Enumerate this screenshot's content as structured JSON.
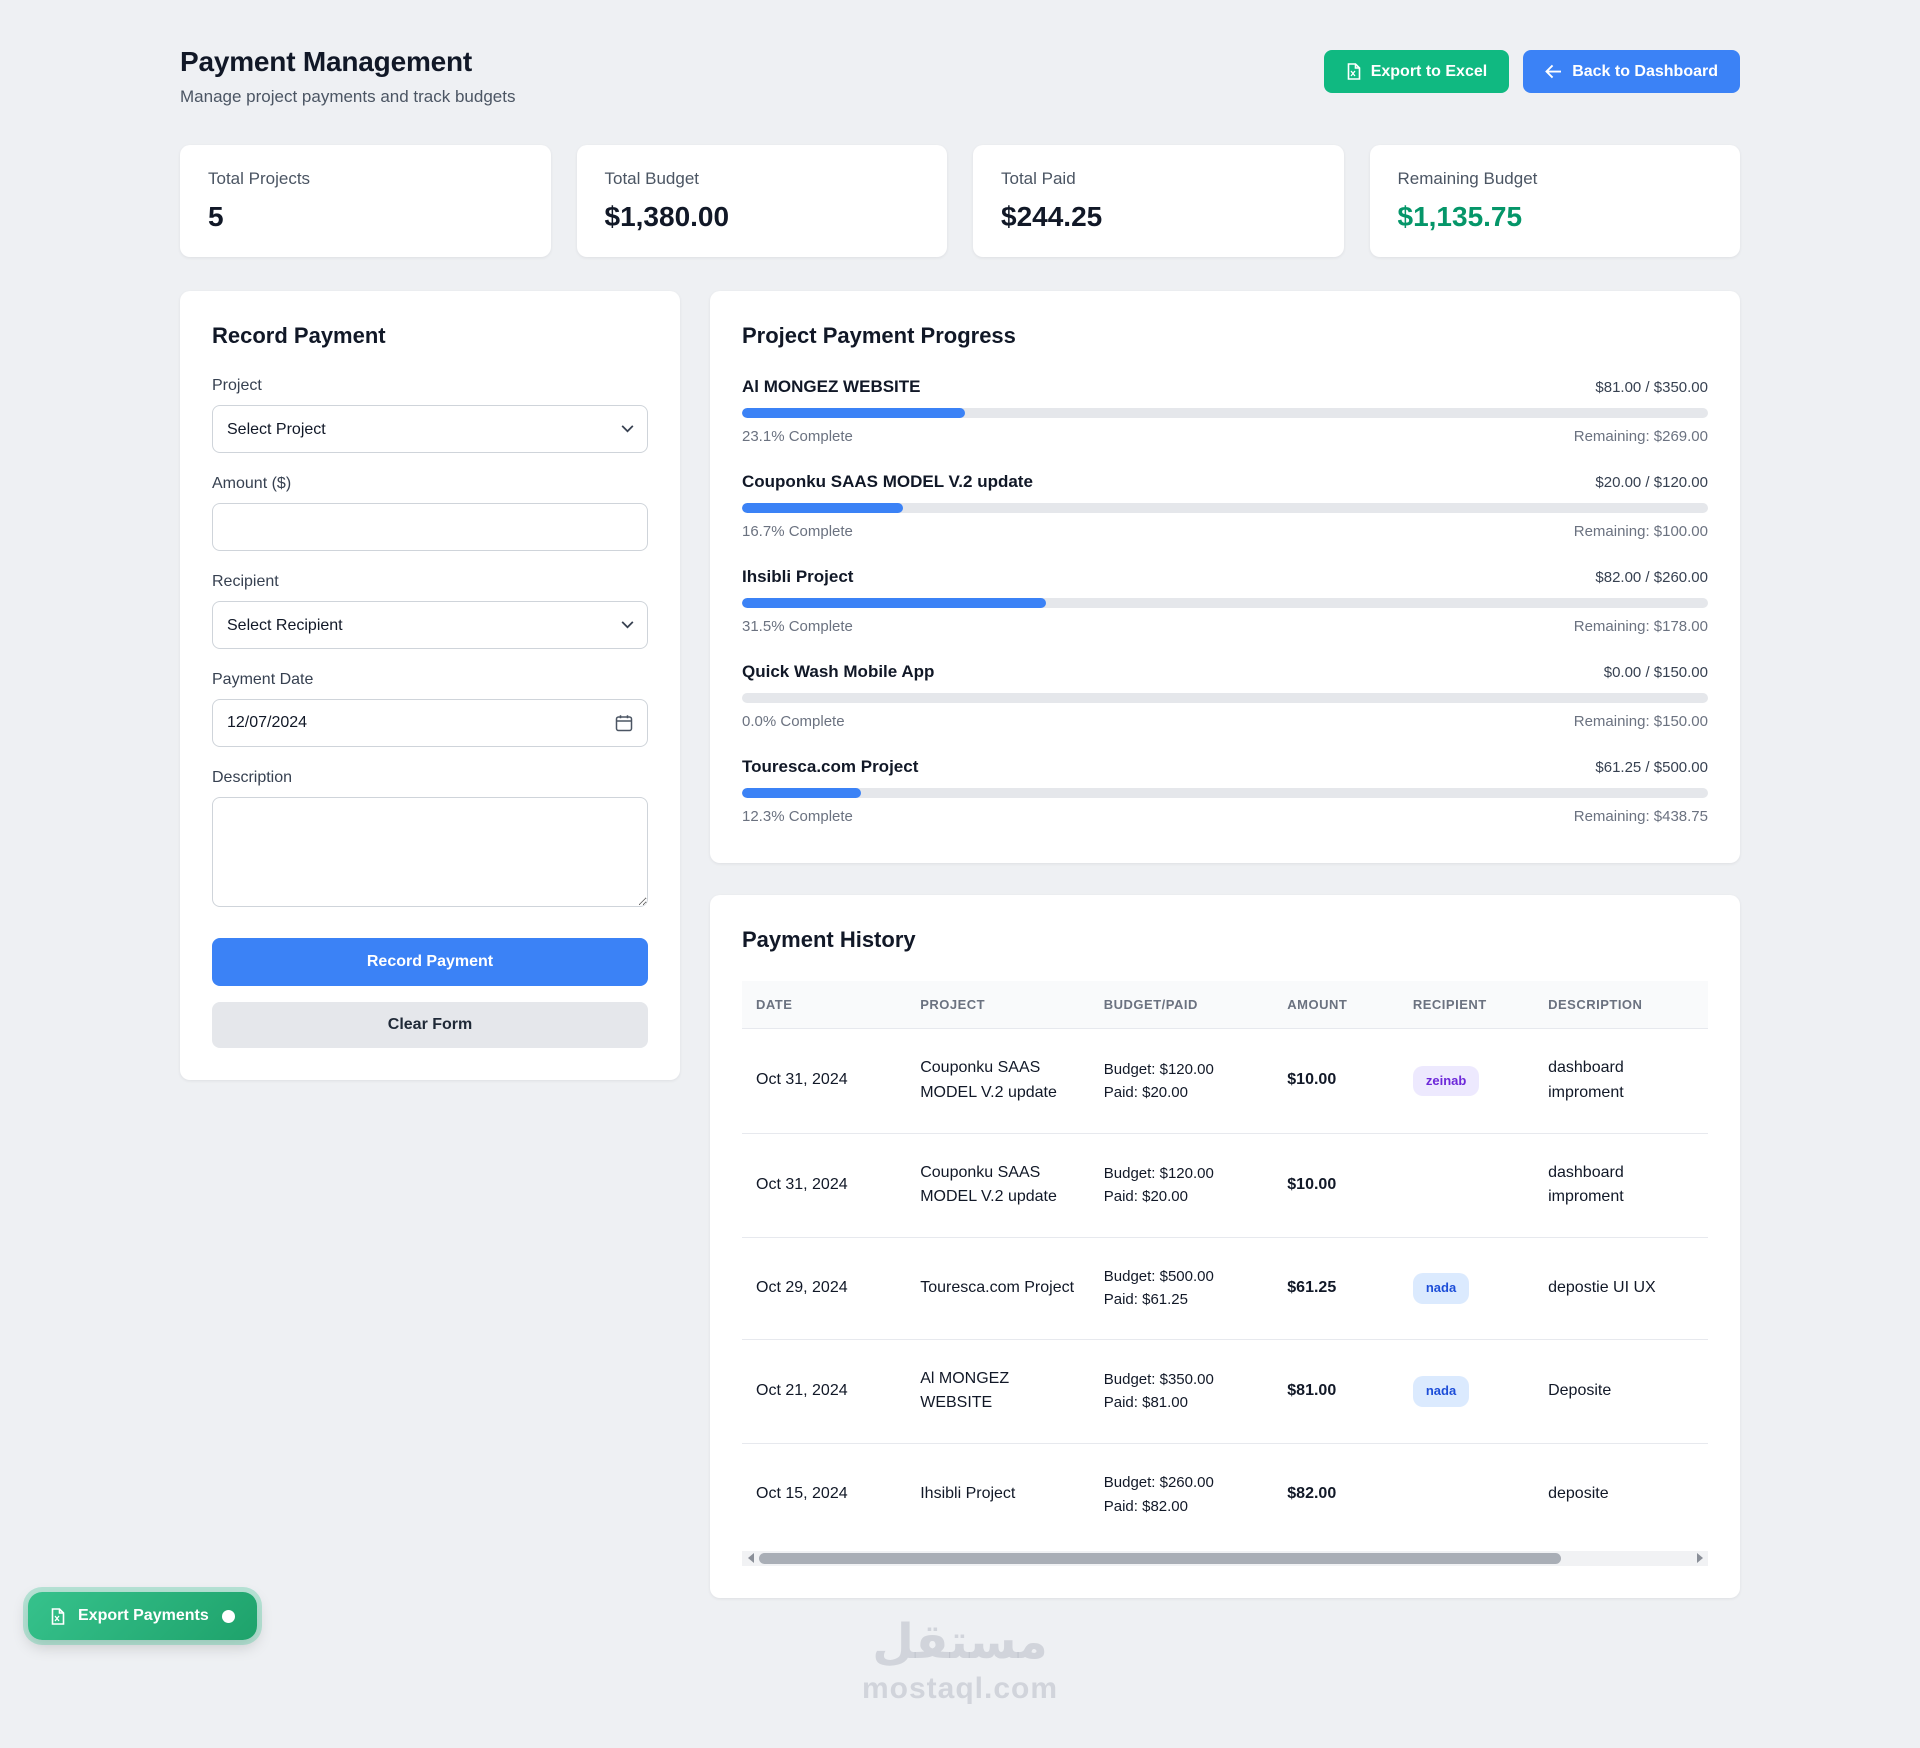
{
  "header": {
    "title": "Payment Management",
    "subtitle": "Manage project payments and track budgets",
    "export_excel_label": "Export to Excel",
    "back_label": "Back to Dashboard"
  },
  "colors": {
    "primary_blue": "#3b82f6",
    "success_green": "#10b981",
    "remaining_green": "#059669",
    "badge_purple_bg": "#ede9fe",
    "badge_purple_text": "#6d28d9",
    "badge_blue_bg": "#dbeafe",
    "badge_blue_text": "#1d4ed8"
  },
  "stats": [
    {
      "label": "Total Projects",
      "value": "5"
    },
    {
      "label": "Total Budget",
      "value": "$1,380.00"
    },
    {
      "label": "Total Paid",
      "value": "$244.25"
    },
    {
      "label": "Remaining Budget",
      "value": "$1,135.75"
    }
  ],
  "form": {
    "title": "Record Payment",
    "project_label": "Project",
    "project_value": "Select Project",
    "amount_label": "Amount ($)",
    "amount_value": "",
    "recipient_label": "Recipient",
    "recipient_value": "Select Recipient",
    "date_label": "Payment Date",
    "date_value": "12/07/2024",
    "description_label": "Description",
    "description_value": "",
    "submit_label": "Record Payment",
    "clear_label": "Clear Form"
  },
  "progress": {
    "title": "Project Payment Progress",
    "projects": [
      {
        "name": "Al MONGEZ WEBSITE",
        "paid_total": "$81.00 / $350.00",
        "percent": 23.1,
        "percent_label": "23.1% Complete",
        "remaining": "Remaining: $269.00"
      },
      {
        "name": "Couponku SAAS MODEL V.2 update",
        "paid_total": "$20.00 / $120.00",
        "percent": 16.7,
        "percent_label": "16.7% Complete",
        "remaining": "Remaining: $100.00"
      },
      {
        "name": "Ihsibli Project",
        "paid_total": "$82.00 / $260.00",
        "percent": 31.5,
        "percent_label": "31.5% Complete",
        "remaining": "Remaining: $178.00"
      },
      {
        "name": "Quick Wash Mobile App",
        "paid_total": "$0.00 / $150.00",
        "percent": 0,
        "percent_label": "0.0% Complete",
        "remaining": "Remaining: $150.00"
      },
      {
        "name": "Touresca.com Project",
        "paid_total": "$61.25 / $500.00",
        "percent": 12.3,
        "percent_label": "12.3% Complete",
        "remaining": "Remaining: $438.75"
      }
    ]
  },
  "history": {
    "title": "Payment History",
    "columns": [
      "DATE",
      "PROJECT",
      "BUDGET/PAID",
      "AMOUNT",
      "RECIPIENT",
      "DESCRIPTION"
    ],
    "rows": [
      {
        "date": "Oct 31, 2024",
        "project": "Couponku SAAS MODEL V.2 update",
        "budget": "Budget: $120.00",
        "paid": "Paid: $20.00",
        "amount": "$10.00",
        "recipient": "zeinab",
        "recipient_style": "purple",
        "description": "dashboard improment"
      },
      {
        "date": "Oct 31, 2024",
        "project": "Couponku SAAS MODEL V.2 update",
        "budget": "Budget: $120.00",
        "paid": "Paid: $20.00",
        "amount": "$10.00",
        "recipient": "",
        "recipient_style": "",
        "description": "dashboard improment"
      },
      {
        "date": "Oct 29, 2024",
        "project": "Touresca.com Project",
        "budget": "Budget: $500.00",
        "paid": "Paid: $61.25",
        "amount": "$61.25",
        "recipient": "nada",
        "recipient_style": "blue",
        "description": "depostie UI UX"
      },
      {
        "date": "Oct 21, 2024",
        "project": "Al MONGEZ WEBSITE",
        "budget": "Budget: $350.00",
        "paid": "Paid: $81.00",
        "amount": "$81.00",
        "recipient": "nada",
        "recipient_style": "blue",
        "description": "Deposite"
      },
      {
        "date": "Oct 15, 2024",
        "project": "Ihsibli Project",
        "budget": "Budget: $260.00",
        "paid": "Paid: $82.00",
        "amount": "$82.00",
        "recipient": "",
        "recipient_style": "",
        "description": "deposite"
      }
    ]
  },
  "export_fab": {
    "label": "Export Payments"
  },
  "watermark": {
    "line1": "مستقل",
    "line2": "mostaql.com"
  }
}
